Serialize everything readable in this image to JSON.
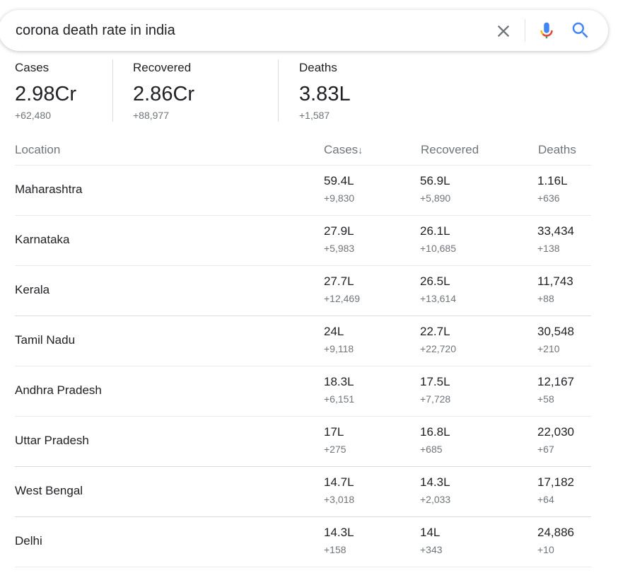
{
  "search": {
    "query": "corona death rate in india"
  },
  "summary": [
    {
      "label": "Cases",
      "value": "2.98Cr",
      "delta": "+62,480"
    },
    {
      "label": "Recovered",
      "value": "2.86Cr",
      "delta": "+88,977"
    },
    {
      "label": "Deaths",
      "value": "3.83L",
      "delta": "+1,587"
    }
  ],
  "table": {
    "headers": {
      "location": "Location",
      "cases": "Cases",
      "cases_sort_arrow": "↓",
      "recovered": "Recovered",
      "deaths": "Deaths"
    },
    "rows": [
      {
        "location": "Maharashtra",
        "cases": "59.4L",
        "cases_delta": "+9,830",
        "recovered": "56.9L",
        "recovered_delta": "+5,890",
        "deaths": "1.16L",
        "deaths_delta": "+636"
      },
      {
        "location": "Karnataka",
        "cases": "27.9L",
        "cases_delta": "+5,983",
        "recovered": "26.1L",
        "recovered_delta": "+10,685",
        "deaths": "33,434",
        "deaths_delta": "+138"
      },
      {
        "location": "Kerala",
        "cases": "27.7L",
        "cases_delta": "+12,469",
        "recovered": "26.5L",
        "recovered_delta": "+13,614",
        "deaths": "11,743",
        "deaths_delta": "+88"
      },
      {
        "location": "Tamil Nadu",
        "cases": "24L",
        "cases_delta": "+9,118",
        "recovered": "22.7L",
        "recovered_delta": "+22,720",
        "deaths": "30,548",
        "deaths_delta": "+210"
      },
      {
        "location": "Andhra Pradesh",
        "cases": "18.3L",
        "cases_delta": "+6,151",
        "recovered": "17.5L",
        "recovered_delta": "+7,728",
        "deaths": "12,167",
        "deaths_delta": "+58"
      },
      {
        "location": "Uttar Pradesh",
        "cases": "17L",
        "cases_delta": "+275",
        "recovered": "16.8L",
        "recovered_delta": "+685",
        "deaths": "22,030",
        "deaths_delta": "+67"
      },
      {
        "location": "West Bengal",
        "cases": "14.7L",
        "cases_delta": "+3,018",
        "recovered": "14.3L",
        "recovered_delta": "+2,033",
        "deaths": "17,182",
        "deaths_delta": "+64"
      },
      {
        "location": "Delhi",
        "cases": "14.3L",
        "cases_delta": "+158",
        "recovered": "14L",
        "recovered_delta": "+343",
        "deaths": "24,886",
        "deaths_delta": "+10"
      }
    ]
  },
  "icons": {
    "clear": "close-icon",
    "mic": "microphone-icon",
    "search": "search-icon"
  },
  "colors": {
    "search_blue": "#4285f4",
    "mic_red": "#ea4335",
    "mic_yellow": "#fbbc04",
    "mic_green": "#34a853",
    "secondary_text": "#70757a"
  }
}
